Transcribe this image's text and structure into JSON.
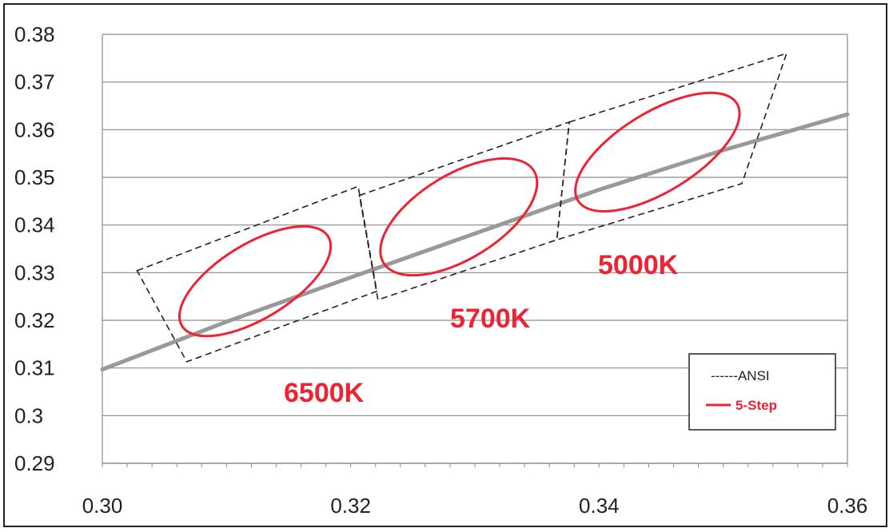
{
  "chart_data": {
    "type": "line",
    "xlim": [
      0.3,
      0.36
    ],
    "ylim": [
      0.29,
      0.38
    ],
    "x_ticks": [
      "0.30",
      "0.32",
      "0.34",
      "0.36"
    ],
    "y_ticks": [
      "0.38",
      "0.37",
      "0.36",
      "0.35",
      "0.34",
      "0.33",
      "0.32",
      "0.31",
      "0.3",
      "0.29"
    ],
    "grid": "horizontal",
    "legend_position": "lower-right",
    "legend": [
      {
        "label": "------ANSI",
        "color": "#222222",
        "style": "dashed"
      },
      {
        "label": "5-Step",
        "color": "#ee2233",
        "style": "solid"
      }
    ],
    "blackbody_curve": {
      "color": "#999999",
      "x": [
        0.3,
        0.31,
        0.32,
        0.33,
        0.34,
        0.35,
        0.36
      ],
      "y": [
        0.3097,
        0.3197,
        0.329,
        0.3382,
        0.3474,
        0.3557,
        0.3632
      ]
    },
    "ansi_quadrangles": [
      {
        "label": "6500K",
        "color": "#ee2233",
        "corners": [
          [
            0.3028,
            0.3304
          ],
          [
            0.3206,
            0.3481
          ],
          [
            0.3221,
            0.3261
          ],
          [
            0.3068,
            0.3113
          ]
        ]
      },
      {
        "label": "5700K",
        "color": "#ee2233",
        "corners": [
          [
            0.3207,
            0.3462
          ],
          [
            0.3376,
            0.3616
          ],
          [
            0.3366,
            0.3369
          ],
          [
            0.3222,
            0.3243
          ]
        ]
      },
      {
        "label": "5000K",
        "color": "#ee2233",
        "corners": [
          [
            0.3376,
            0.3616
          ],
          [
            0.3551,
            0.376
          ],
          [
            0.3515,
            0.3487
          ],
          [
            0.3366,
            0.3369
          ]
        ]
      }
    ],
    "five_step_ellipses": [
      {
        "center": [
          0.3123,
          0.3282
        ],
        "a": 0.0069,
        "b": 0.003,
        "rotation_deg": 58.5
      },
      {
        "center": [
          0.3287,
          0.3417
        ],
        "a": 0.0071,
        "b": 0.0034,
        "rotation_deg": 58.5
      },
      {
        "center": [
          0.3447,
          0.3553
        ],
        "a": 0.0075,
        "b": 0.0032,
        "rotation_deg": 58.5
      }
    ]
  }
}
